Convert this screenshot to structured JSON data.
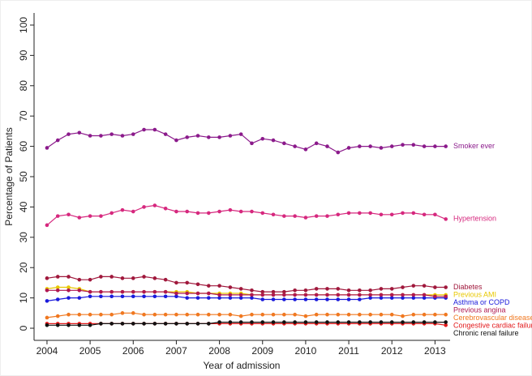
{
  "chart_data": {
    "type": "line",
    "x_label": "Year of admission",
    "y_label": "Percentage of Patients",
    "x": [
      2004,
      2004.25,
      2004.5,
      2004.75,
      2005,
      2005.25,
      2005.5,
      2005.75,
      2006,
      2006.25,
      2006.5,
      2006.75,
      2007,
      2007.25,
      2007.5,
      2007.75,
      2008,
      2008.25,
      2008.5,
      2008.75,
      2009,
      2009.25,
      2009.5,
      2009.75,
      2010,
      2010.25,
      2010.5,
      2010.75,
      2011,
      2011.25,
      2011.5,
      2011.75,
      2012,
      2012.25,
      2012.5,
      2012.75,
      2013,
      2013.25
    ],
    "xlim": [
      2003.7,
      2013.35
    ],
    "xticks": [
      2004,
      2005,
      2006,
      2007,
      2008,
      2009,
      2010,
      2011,
      2012,
      2013
    ],
    "ylim": [
      -4,
      104
    ],
    "yticks": [
      0,
      10,
      20,
      30,
      40,
      50,
      60,
      70,
      80,
      90,
      100
    ],
    "grid": false,
    "series": [
      {
        "name": "Smoker ever",
        "color": "#8b1a8b",
        "values": [
          59.5,
          62,
          64,
          64.5,
          63.5,
          63.5,
          64,
          63.5,
          64,
          65.5,
          65.5,
          64,
          62,
          63,
          63.5,
          63,
          63,
          63.5,
          64,
          61,
          62.5,
          62,
          61,
          60,
          59,
          61,
          60,
          58,
          59.5,
          60,
          60,
          59.5,
          60,
          60.5,
          60.5,
          60,
          60,
          60
        ]
      },
      {
        "name": "Hypertension",
        "color": "#d6287e",
        "values": [
          34,
          37,
          37.5,
          36.5,
          37,
          37,
          38,
          39,
          38.5,
          40,
          40.5,
          39.5,
          38.5,
          38.5,
          38,
          38,
          38.5,
          39,
          38.5,
          38.5,
          38,
          37.5,
          37,
          37,
          36.5,
          37,
          37,
          37.5,
          38,
          38,
          38,
          37.5,
          37.5,
          38,
          38,
          37.5,
          37.5,
          36
        ]
      },
      {
        "name": "Diabetes",
        "color": "#a0183c",
        "values": [
          16.5,
          17,
          17,
          16,
          16,
          17,
          17,
          16.5,
          16.5,
          17,
          16.5,
          16,
          15,
          15,
          14.5,
          14,
          14,
          13.5,
          13,
          12.5,
          12,
          12,
          12,
          12.5,
          12.5,
          13,
          13,
          13,
          12.5,
          12.5,
          12.5,
          13,
          13,
          13.5,
          14,
          14,
          13.5,
          13.5
        ]
      },
      {
        "name": "Previous AMI",
        "color": "#e8c800",
        "values": [
          13,
          13.5,
          13.5,
          13,
          12,
          12,
          12,
          12,
          12,
          12,
          12,
          12,
          12,
          12,
          11.5,
          11.5,
          11.5,
          11.5,
          11.5,
          11,
          11,
          11,
          11,
          11,
          11,
          11,
          11,
          11,
          11,
          11,
          11,
          11,
          11,
          11,
          11,
          11,
          11,
          11
        ]
      },
      {
        "name": "Asthma or COPD",
        "color": "#1a1adb",
        "values": [
          9,
          9.5,
          10,
          10,
          10.5,
          10.5,
          10.5,
          10.5,
          10.5,
          10.5,
          10.5,
          10.5,
          10.5,
          10,
          10,
          10,
          10,
          10,
          10,
          10,
          9.5,
          9.5,
          9.5,
          9.5,
          9.5,
          9.5,
          9.5,
          9.5,
          9.5,
          9.5,
          10,
          10,
          10,
          10,
          10,
          10,
          10,
          10
        ]
      },
      {
        "name": "Previous angina",
        "color": "#b01850",
        "values": [
          12.5,
          12.5,
          12.5,
          12.5,
          12,
          12,
          12,
          12,
          12,
          12,
          12,
          12,
          11.5,
          11.5,
          11.5,
          11.5,
          11,
          11,
          11,
          11,
          11,
          11,
          11,
          11,
          11,
          11,
          11,
          11,
          11,
          11,
          11,
          11,
          11,
          11,
          11,
          11,
          10.5,
          10.5
        ]
      },
      {
        "name": "Cerebrovascular disease",
        "color": "#f07820",
        "values": [
          3.5,
          4,
          4.5,
          4.5,
          4.5,
          4.5,
          4.5,
          5,
          5,
          4.5,
          4.5,
          4.5,
          4.5,
          4.5,
          4.5,
          4.5,
          4.5,
          4.5,
          4,
          4.5,
          4.5,
          4.5,
          4.5,
          4.5,
          4,
          4.5,
          4.5,
          4.5,
          4.5,
          4.5,
          4.5,
          4.5,
          4.5,
          4,
          4.5,
          4.5,
          4.5,
          4.5
        ]
      },
      {
        "name": "Congestive cardiac failure",
        "color": "#e31a1c",
        "values": [
          1.5,
          1.5,
          1.5,
          1.5,
          1.5,
          1.5,
          1.5,
          1.5,
          1.5,
          1.5,
          1.5,
          1.5,
          1.5,
          1.5,
          1.5,
          1.5,
          1.5,
          1.5,
          1.5,
          1.5,
          1.5,
          1.5,
          1.5,
          1.5,
          1.5,
          1.5,
          1.5,
          1.5,
          1.5,
          1.5,
          1.5,
          1.5,
          1.5,
          1.5,
          1.5,
          1.5,
          1.5,
          1
        ]
      },
      {
        "name": "Chronic renal failure",
        "color": "#111111",
        "values": [
          1,
          1,
          1,
          1,
          1,
          1.5,
          1.5,
          1.5,
          1.5,
          1.5,
          1.5,
          1.5,
          1.5,
          1.5,
          1.5,
          1.5,
          2,
          2,
          2,
          2,
          2,
          2,
          2,
          2,
          2,
          2,
          2,
          2,
          2,
          2,
          2,
          2,
          2,
          2,
          2,
          2,
          2,
          2
        ]
      }
    ]
  }
}
